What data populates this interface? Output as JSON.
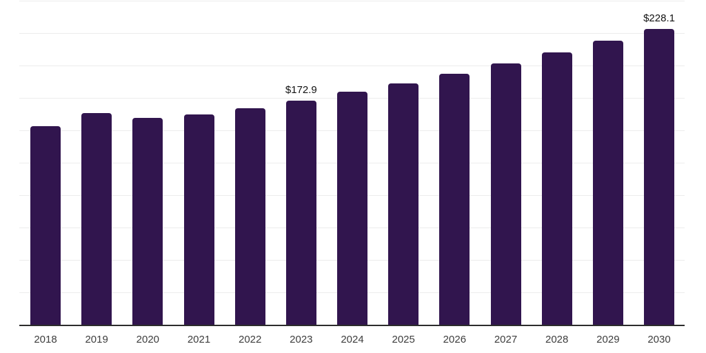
{
  "chart_data": {
    "type": "bar",
    "title": "",
    "xlabel": "",
    "ylabel": "",
    "categories": [
      "2018",
      "2019",
      "2020",
      "2021",
      "2022",
      "2023",
      "2024",
      "2025",
      "2026",
      "2027",
      "2028",
      "2029",
      "2030"
    ],
    "values": [
      153.3,
      163.4,
      159.7,
      162.0,
      166.9,
      172.9,
      179.8,
      186.4,
      193.8,
      201.7,
      210.3,
      218.9,
      228.1
    ],
    "value_labels": [
      {
        "index": 5,
        "text": "$172.9"
      },
      {
        "index": 12,
        "text": "$228.1"
      }
    ],
    "ylim": [
      0,
      250
    ],
    "grid": {
      "visible": true,
      "interval": 25
    },
    "legend": {
      "visible": false
    },
    "colors": {
      "bar": "#31154e",
      "grid_line": "#ececec",
      "axis_line": "#2b2b2b",
      "tick_label": "#3d3d3d",
      "value_label": "#111111",
      "background": "#ffffff"
    }
  }
}
